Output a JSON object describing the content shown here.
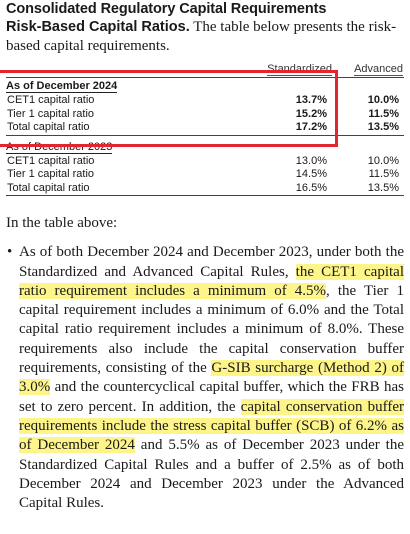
{
  "heading": "Consolidated Regulatory Capital Requirements",
  "intro": {
    "lead": "Risk-Based Capital Ratios.",
    "text": " The table below presents the risk-based capital requirements."
  },
  "table": {
    "columns": {
      "standardized": "Standardized",
      "advanced": "Advanced"
    },
    "sections": [
      {
        "title": "As of December 2024",
        "rows": [
          {
            "label": "CET1 capital ratio",
            "standardized": "13.7%",
            "advanced": "10.0%"
          },
          {
            "label": "Tier 1 capital ratio",
            "standardized": "15.2%",
            "advanced": "11.5%"
          },
          {
            "label": "Total capital ratio",
            "standardized": "17.2%",
            "advanced": "13.5%"
          }
        ]
      },
      {
        "title": "As of December 2023",
        "rows": [
          {
            "label": "CET1 capital ratio",
            "standardized": "13.0%",
            "advanced": "10.0%"
          },
          {
            "label": "Tier 1 capital ratio",
            "standardized": "14.5%",
            "advanced": "11.5%"
          },
          {
            "label": "Total capital ratio",
            "standardized": "16.5%",
            "advanced": "13.5%"
          }
        ]
      }
    ]
  },
  "after_label": "In the table above:",
  "bullet": {
    "marker": "•",
    "p1": "As of both December 2024 and December 2023, under both the Standardized and Advanced Capital Rules, ",
    "h1": "the CET1 capital ratio requirement includes a minimum of 4.5%",
    "p2": ", the Tier 1 capital requirement includes a minimum of 6.0% and the Total capital ratio requirement includes a minimum of 8.0%. These requirements also include the capital conservation buffer requirements, consisting of the ",
    "h2": "G-SIB surcharge (Method 2) of 3.0%",
    "p3": " and the countercyclical capital buffer, which the FRB has set to zero percent. In addition, the ",
    "h3": "capital conservation buffer requirements include the stress capital buffer (SCB) of 6.2% as of December 2024",
    "p4": " and 5.5% as of December 2023 under the Standardized Capital Rules and a buffer of 2.5% as of both December 2024 and December 2023 under the Advanced Capital Rules."
  },
  "colors": {
    "highlight": "#fdf58a",
    "box": "#e3262d"
  }
}
